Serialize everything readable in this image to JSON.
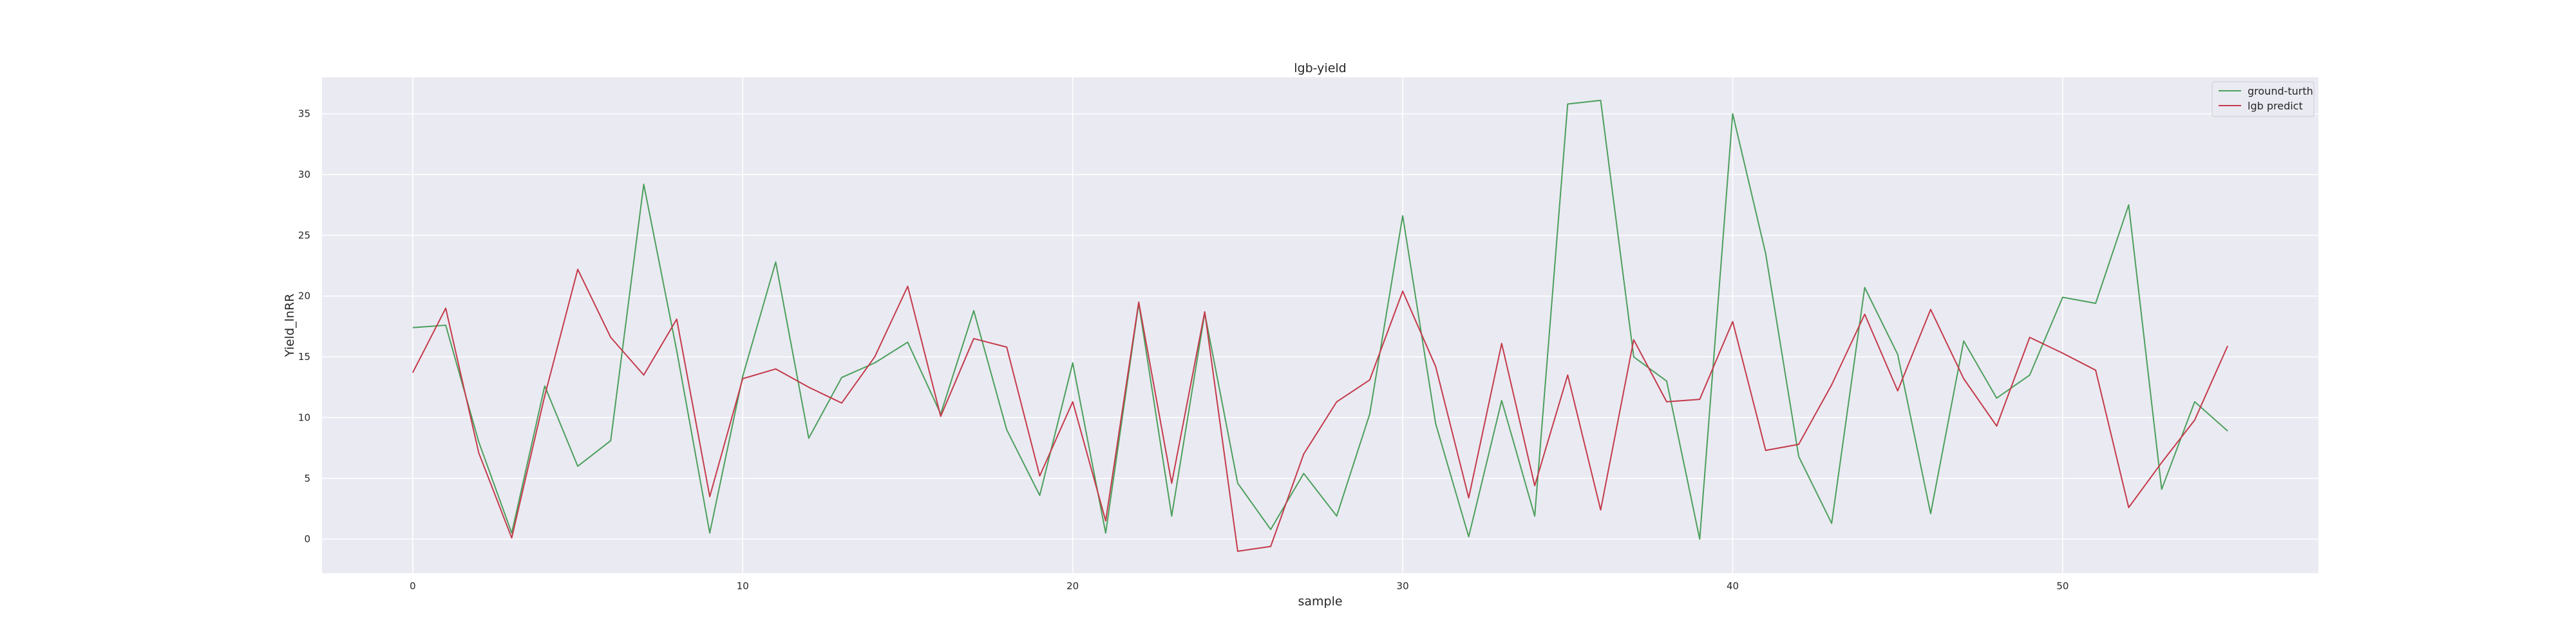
{
  "chart_data": {
    "type": "line",
    "title": "lgb-yield",
    "xlabel": "sample",
    "ylabel": "Yield_lnRR",
    "xlim": [
      -2.75,
      57.75
    ],
    "ylim": [
      -2.8,
      38.0
    ],
    "xticks": [
      0,
      10,
      20,
      30,
      40,
      50
    ],
    "yticks": [
      0,
      5,
      10,
      15,
      20,
      25,
      30,
      35
    ],
    "grid": true,
    "legend_position": "top-right",
    "x": [
      0,
      1,
      2,
      3,
      4,
      5,
      6,
      7,
      8,
      9,
      10,
      11,
      12,
      13,
      14,
      15,
      16,
      17,
      18,
      19,
      20,
      21,
      22,
      23,
      24,
      25,
      26,
      27,
      28,
      29,
      30,
      31,
      32,
      33,
      34,
      35,
      36,
      37,
      38,
      39,
      40,
      41,
      42,
      43,
      44,
      45,
      46,
      47,
      48,
      49,
      50,
      51,
      52,
      53,
      54,
      55
    ],
    "series": [
      {
        "name": "ground-turth",
        "color": "#4c9f5c",
        "values": [
          17.4,
          17.6,
          8.0,
          0.5,
          12.6,
          6.0,
          8.1,
          29.2,
          15.5,
          0.5,
          13.4,
          22.8,
          8.3,
          13.3,
          14.5,
          16.2,
          10.3,
          18.8,
          9.0,
          3.6,
          14.5,
          0.5,
          19.4,
          1.9,
          18.6,
          4.6,
          0.8,
          5.4,
          1.9,
          10.3,
          26.6,
          9.5,
          0.2,
          11.4,
          1.9,
          35.8,
          36.1,
          15.0,
          13.0,
          0.0,
          35.0,
          23.5,
          6.8,
          1.3,
          20.7,
          15.2,
          2.1,
          16.3,
          11.6,
          13.5,
          19.9,
          19.4,
          27.5,
          4.1,
          11.3,
          8.9
        ]
      },
      {
        "name": "lgb predict",
        "color": "#c43a4a",
        "values": [
          13.7,
          19.0,
          7.1,
          0.1,
          11.8,
          22.2,
          16.6,
          13.5,
          18.1,
          3.5,
          13.2,
          14.0,
          12.5,
          11.2,
          15.0,
          20.8,
          10.1,
          16.5,
          15.8,
          5.2,
          11.3,
          1.5,
          19.5,
          4.6,
          18.7,
          -1.0,
          -0.6,
          7.0,
          11.3,
          13.1,
          20.4,
          14.2,
          3.4,
          16.1,
          4.4,
          13.5,
          2.4,
          16.4,
          11.3,
          11.5,
          17.9,
          7.3,
          7.8,
          12.7,
          18.5,
          12.2,
          18.9,
          13.2,
          9.3,
          16.6,
          15.3,
          13.9,
          2.6,
          6.3,
          9.8,
          15.9
        ]
      }
    ]
  },
  "colors": {
    "plot_background": "#eaeaf2",
    "grid": "#ffffff"
  }
}
